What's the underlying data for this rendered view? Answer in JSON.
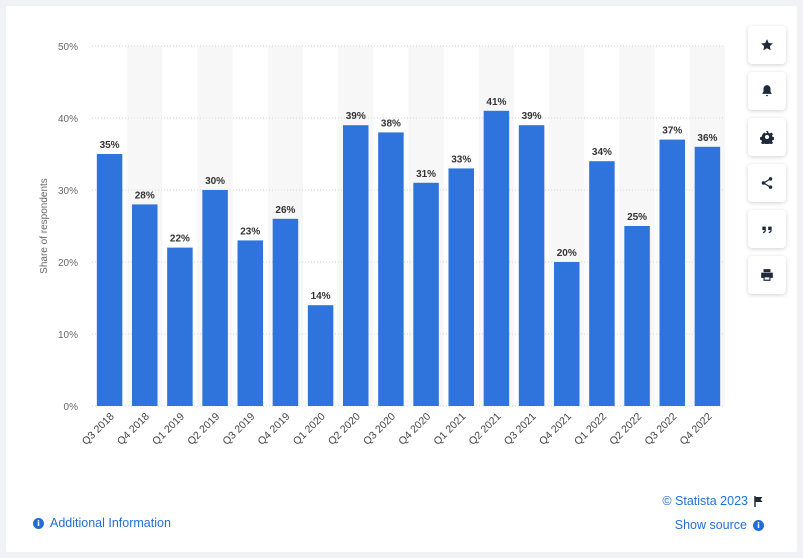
{
  "chart_data": {
    "type": "bar",
    "categories": [
      "Q3 2018",
      "Q4 2018",
      "Q1 2019",
      "Q2 2019",
      "Q3 2019",
      "Q4 2019",
      "Q1 2020",
      "Q2 2020",
      "Q3 2020",
      "Q4 2020",
      "Q1 2021",
      "Q2 2021",
      "Q3 2021",
      "Q4 2021",
      "Q1 2022",
      "Q2 2022",
      "Q3 2022",
      "Q4 2022"
    ],
    "values": [
      35,
      28,
      22,
      30,
      23,
      26,
      14,
      39,
      38,
      31,
      33,
      41,
      39,
      20,
      34,
      25,
      37,
      36
    ],
    "value_labels": [
      "35%",
      "28%",
      "22%",
      "30%",
      "23%",
      "26%",
      "14%",
      "39%",
      "38%",
      "31%",
      "33%",
      "41%",
      "39%",
      "20%",
      "34%",
      "25%",
      "37%",
      "36%"
    ],
    "ylabel": "Share of respondents",
    "ylim": [
      0,
      50
    ],
    "yticks": [
      0,
      10,
      20,
      30,
      40,
      50
    ],
    "ytick_labels": [
      "0%",
      "10%",
      "20%",
      "30%",
      "40%",
      "50%"
    ],
    "grid": true,
    "bar_color": "#2f74dc"
  },
  "toolbar": {
    "buttons": [
      {
        "name": "favorite-button",
        "icon": "star-icon"
      },
      {
        "name": "notification-button",
        "icon": "bell-icon"
      },
      {
        "name": "settings-button",
        "icon": "gear-icon"
      },
      {
        "name": "share-button",
        "icon": "share-icon"
      },
      {
        "name": "cite-button",
        "icon": "quote-icon"
      },
      {
        "name": "print-button",
        "icon": "print-icon"
      }
    ]
  },
  "footer": {
    "additional_info": "Additional Information",
    "copyright": "© Statista 2023",
    "show_source": "Show source"
  }
}
